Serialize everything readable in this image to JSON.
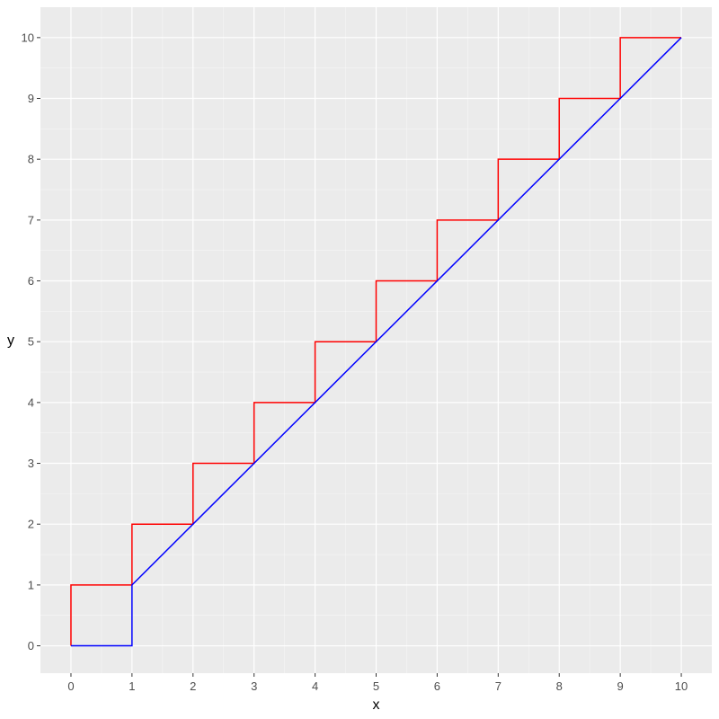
{
  "chart_data": {
    "type": "line",
    "title": "",
    "xlabel": "x",
    "ylabel": "y",
    "xlim": [
      -0.5,
      10.5
    ],
    "ylim": [
      -0.45,
      10.5
    ],
    "x_ticks": [
      0,
      1,
      2,
      3,
      4,
      5,
      6,
      7,
      8,
      9,
      10
    ],
    "y_ticks": [
      0,
      1,
      2,
      3,
      4,
      5,
      6,
      7,
      8,
      9,
      10
    ],
    "grid": true,
    "background": "#ebebeb",
    "grid_major_color": "#ffffff",
    "series": [
      {
        "color": "#ff0000",
        "points": [
          [
            0,
            0
          ],
          [
            0,
            1
          ],
          [
            1,
            1
          ],
          [
            1,
            2
          ],
          [
            2,
            2
          ],
          [
            2,
            3
          ],
          [
            3,
            3
          ],
          [
            3,
            4
          ],
          [
            4,
            4
          ],
          [
            4,
            5
          ],
          [
            5,
            5
          ],
          [
            5,
            6
          ],
          [
            6,
            6
          ],
          [
            6,
            7
          ],
          [
            7,
            7
          ],
          [
            7,
            8
          ],
          [
            8,
            8
          ],
          [
            8,
            9
          ],
          [
            9,
            9
          ],
          [
            9,
            10
          ],
          [
            10,
            10
          ]
        ]
      },
      {
        "color": "#0000ff",
        "points": [
          [
            0,
            0
          ],
          [
            1,
            0
          ],
          [
            1,
            1
          ],
          [
            10,
            10
          ]
        ]
      }
    ]
  }
}
